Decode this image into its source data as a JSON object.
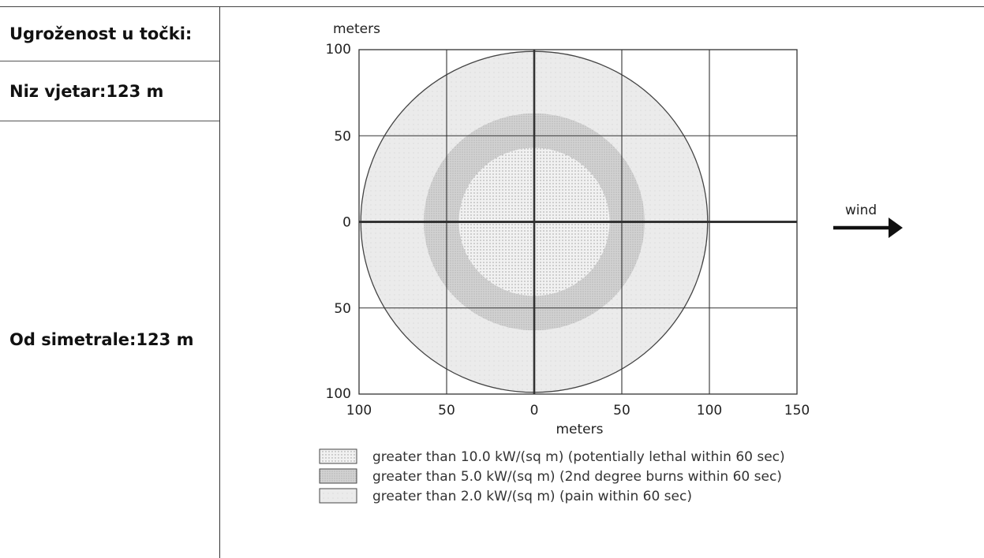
{
  "left_panel": {
    "threat_label": "Ugroženost u točki:",
    "downwind_label": "Niz vjetar:123 m",
    "crosswind_label": "Od simetrale:123 m"
  },
  "chart_data": {
    "type": "area",
    "title": "",
    "ylabel": "meters",
    "xlabel": "meters",
    "x_ticks": [
      "100",
      "50",
      "0",
      "50",
      "100",
      "150"
    ],
    "y_ticks": [
      "100",
      "50",
      "0",
      "50",
      "100"
    ],
    "xlim": [
      -100,
      150
    ],
    "ylim": [
      -100,
      100
    ],
    "grid": true,
    "wind_label": "wind",
    "zones": [
      {
        "label": "greater than 10.0 kW/(sq m) (potentially lethal within 60 sec)",
        "center_x": 0,
        "radius": 43,
        "color": "#e4e4e4"
      },
      {
        "label": "greater than 5.0 kW/(sq m) (2nd degree burns within 60 sec)",
        "center_x": 0,
        "radius": 63,
        "color": "#cfcfcf"
      },
      {
        "label": "greater than 2.0 kW/(sq m) (pain within 60 sec)",
        "center_x": 0,
        "radius": 99,
        "color": "#ececec"
      }
    ]
  }
}
